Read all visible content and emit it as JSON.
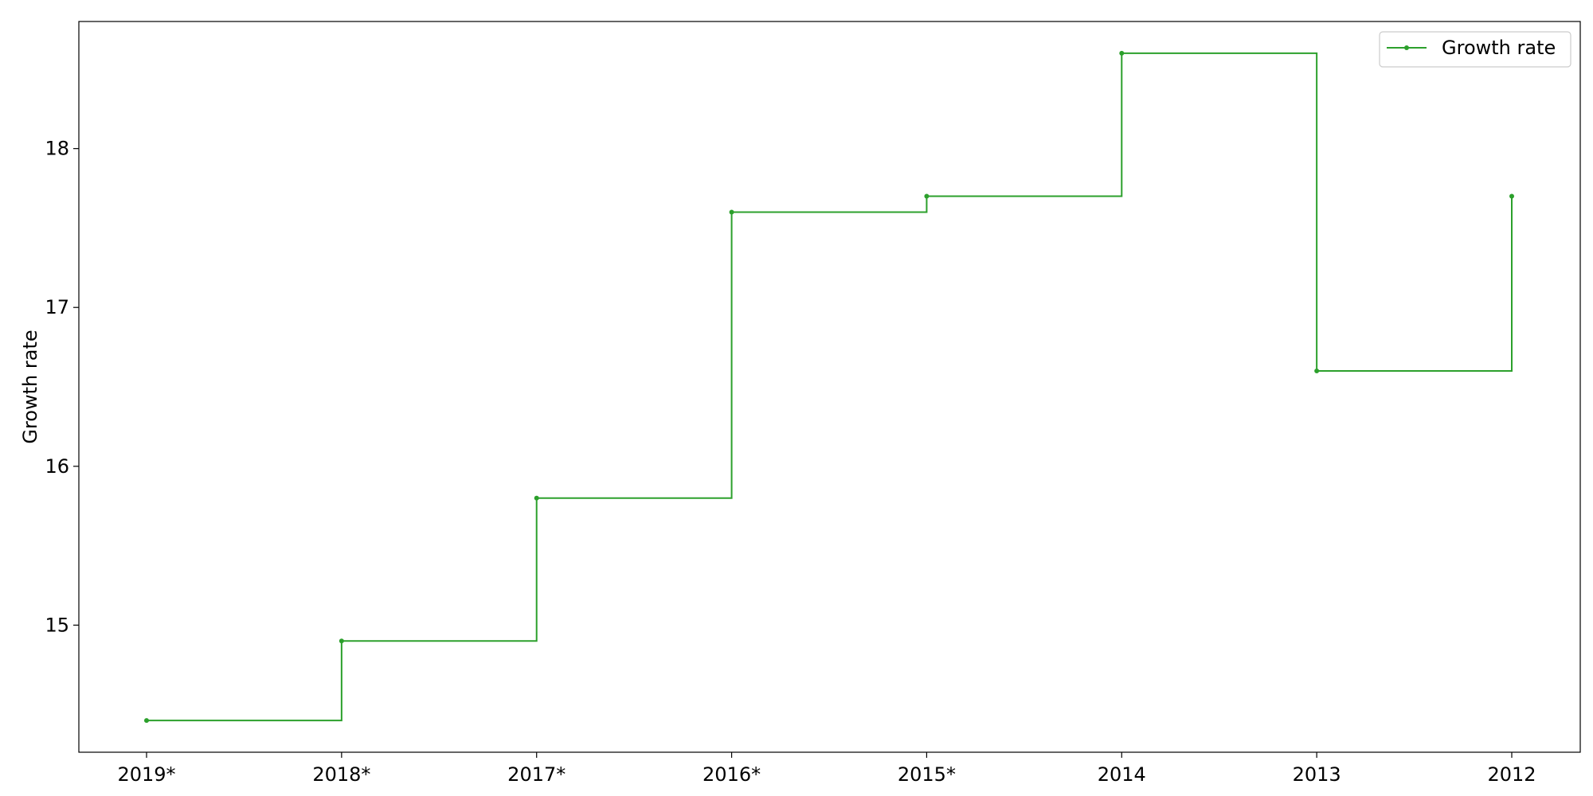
{
  "chart_data": {
    "type": "line",
    "step": "post",
    "title": "",
    "xlabel": "",
    "ylabel": "Growth rate",
    "categories": [
      "2019*",
      "2018*",
      "2017*",
      "2016*",
      "2015*",
      "2014",
      "2013",
      "2012"
    ],
    "series": [
      {
        "name": "Growth rate",
        "color": "#2ca02c",
        "values": [
          14.4,
          14.9,
          15.8,
          17.6,
          17.7,
          18.6,
          16.6,
          17.7
        ]
      }
    ],
    "yticks": [
      15,
      16,
      17,
      18
    ],
    "ylim": [
      14.2,
      18.8
    ],
    "grid": false,
    "legend": "top-right"
  }
}
